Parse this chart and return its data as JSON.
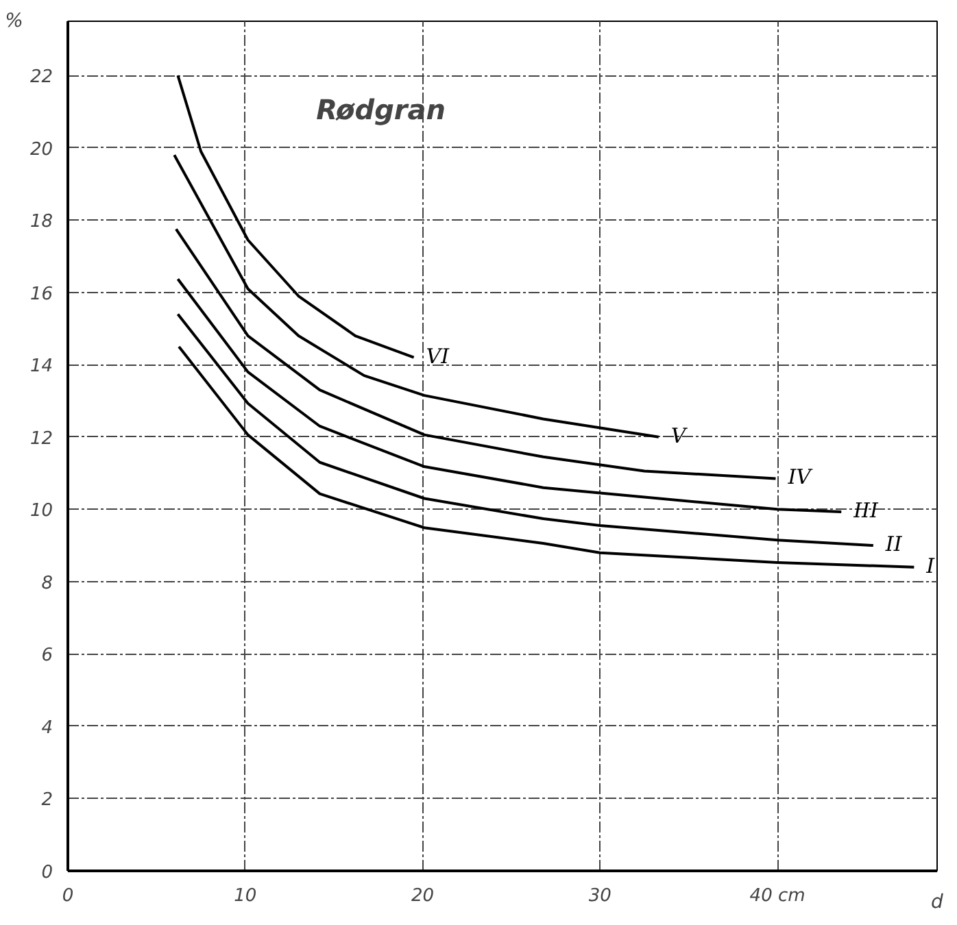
{
  "chart_data": {
    "type": "line",
    "xlabel": "d",
    "ylabel": "%",
    "annotations": [
      "Rødgran"
    ],
    "xlim": [
      0,
      49
    ],
    "ylim": [
      0,
      23.5
    ],
    "xticks": [
      0,
      10,
      20,
      30,
      {
        "value": 40,
        "label": "40 cm"
      }
    ],
    "yticks": [
      0,
      2,
      4,
      6,
      8,
      10,
      12,
      14,
      16,
      18,
      20,
      22
    ],
    "grid": true,
    "marker": "none",
    "line_style": "solid",
    "series": [
      {
        "name": "I",
        "color": "#000000",
        "x": [
          6.26,
          10.15,
          14.2,
          20.1,
          26.8,
          30.0,
          40.0,
          47.7
        ],
        "values": [
          14.5,
          12.06,
          10.43,
          9.49,
          9.06,
          8.8,
          8.53,
          8.4
        ]
      },
      {
        "name": "II",
        "color": "#000000",
        "x": [
          6.2,
          10.15,
          14.2,
          20.1,
          26.8,
          30.0,
          40.0,
          45.4
        ],
        "values": [
          15.4,
          12.93,
          11.3,
          10.3,
          9.74,
          9.55,
          9.15,
          9.0
        ]
      },
      {
        "name": "III",
        "color": "#000000",
        "x": [
          6.2,
          10.15,
          14.2,
          20.1,
          26.8,
          30.0,
          40.0,
          43.6
        ],
        "values": [
          16.37,
          13.8,
          12.3,
          11.18,
          10.6,
          10.45,
          10.0,
          9.93
        ]
      },
      {
        "name": "IV",
        "color": "#000000",
        "x": [
          6.1,
          10.15,
          14.2,
          20.1,
          26.8,
          32.5,
          39.9
        ],
        "values": [
          17.75,
          14.8,
          13.3,
          12.06,
          11.45,
          11.06,
          10.85
        ]
      },
      {
        "name": "V",
        "color": "#000000",
        "x": [
          6.0,
          10.15,
          13.0,
          16.7,
          20.1,
          26.8,
          33.3
        ],
        "values": [
          19.8,
          16.1,
          14.8,
          13.7,
          13.15,
          12.5,
          12.0
        ]
      },
      {
        "name": "VI",
        "color": "#000000",
        "x": [
          6.2,
          7.5,
          10.15,
          13.0,
          16.2,
          19.5
        ],
        "values": [
          22.0,
          19.9,
          17.45,
          15.9,
          14.8,
          14.2
        ]
      }
    ]
  }
}
